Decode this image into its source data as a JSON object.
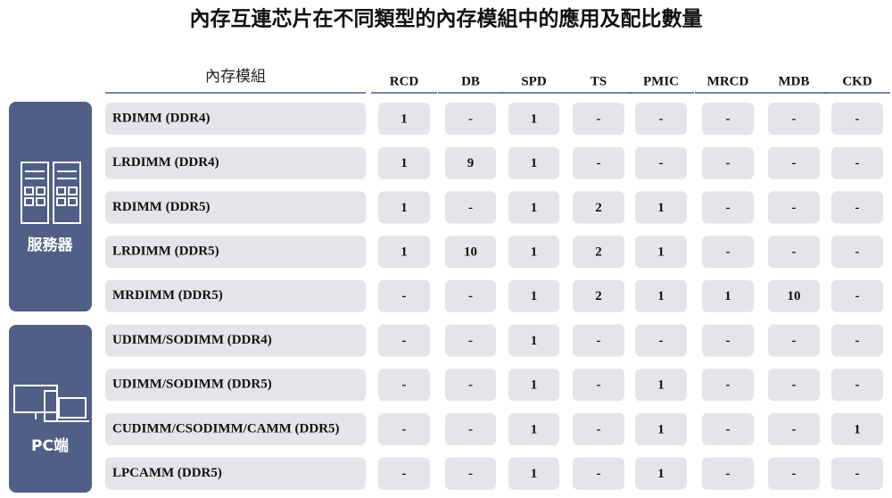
{
  "title": "內存互連芯片在不同類型的內存模組中的應用及配比數量",
  "table": {
    "header": [
      "內存模組",
      "RCD",
      "DB",
      "SPD",
      "TS",
      "PMIC",
      "MRCD",
      "MDB",
      "CKD"
    ],
    "groups": [
      {
        "label": "服務器",
        "rows": [
          [
            "RDIMM (DDR4)",
            "1",
            "-",
            "1",
            "-",
            "-",
            "-",
            "-",
            "-"
          ],
          [
            "LRDIMM (DDR4)",
            "1",
            "9",
            "1",
            "-",
            "-",
            "-",
            "-",
            "-"
          ],
          [
            "RDIMM (DDR5)",
            "1",
            "-",
            "1",
            "2",
            "1",
            "-",
            "-",
            "-"
          ],
          [
            "LRDIMM (DDR5)",
            "1",
            "10",
            "1",
            "2",
            "1",
            "-",
            "-",
            "-"
          ],
          [
            "MRDIMM (DDR5)",
            "-",
            "-",
            "1",
            "2",
            "1",
            "1",
            "10",
            "-"
          ]
        ]
      },
      {
        "label": "PC端",
        "rows": [
          [
            "UDIMM/SODIMM (DDR4)",
            "-",
            "-",
            "1",
            "-",
            "-",
            "-",
            "-",
            "-"
          ],
          [
            "UDIMM/SODIMM (DDR5)",
            "-",
            "-",
            "1",
            "-",
            "1",
            "-",
            "-",
            "-"
          ],
          [
            "CUDIMM/CSODIMM/CAMM (DDR5)",
            "-",
            "-",
            "1",
            "-",
            "1",
            "-",
            "-",
            "1"
          ],
          [
            "LPCAMM (DDR5)",
            "-",
            "-",
            "1",
            "-",
            "1",
            "-",
            "-",
            "-"
          ]
        ]
      }
    ]
  }
}
